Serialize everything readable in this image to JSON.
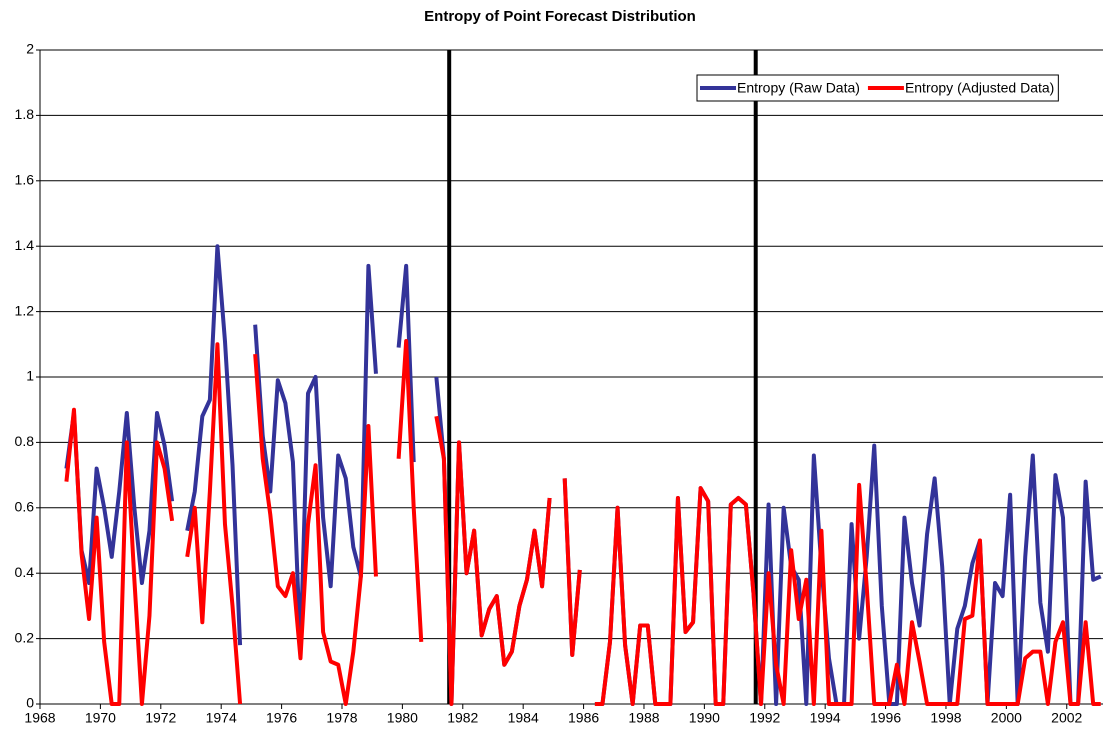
{
  "chart_data": {
    "type": "line",
    "title": "Entropy of Point Forecast Distribution",
    "x": [
      1968.875,
      1969.125,
      1969.375,
      1969.625,
      1969.875,
      1970.125,
      1970.375,
      1970.625,
      1970.875,
      1971.125,
      1971.375,
      1971.625,
      1971.875,
      1972.125,
      1972.375,
      1972.625,
      1972.875,
      1973.125,
      1973.375,
      1973.625,
      1973.875,
      1974.125,
      1974.375,
      1974.625,
      1974.875,
      1975.125,
      1975.375,
      1975.625,
      1975.875,
      1976.125,
      1976.375,
      1976.625,
      1976.875,
      1977.125,
      1977.375,
      1977.625,
      1977.875,
      1978.125,
      1978.375,
      1978.625,
      1978.875,
      1979.125,
      1979.375,
      1979.625,
      1979.875,
      1980.125,
      1980.375,
      1980.625,
      1980.875,
      1981.125,
      1981.375,
      1981.625,
      1981.875,
      1982.125,
      1982.375,
      1982.625,
      1982.875,
      1983.125,
      1983.375,
      1983.625,
      1983.875,
      1984.125,
      1984.375,
      1984.625,
      1984.875,
      1985.125,
      1985.375,
      1985.625,
      1985.875,
      1986.125,
      1986.375,
      1986.625,
      1986.875,
      1987.125,
      1987.375,
      1987.625,
      1987.875,
      1988.125,
      1988.375,
      1988.625,
      1988.875,
      1989.125,
      1989.375,
      1989.625,
      1989.875,
      1990.125,
      1990.375,
      1990.625,
      1990.875,
      1991.125,
      1991.375,
      1991.625,
      1991.875,
      1992.125,
      1992.375,
      1992.625,
      1992.875,
      1993.125,
      1993.375,
      1993.625,
      1993.875,
      1994.125,
      1994.375,
      1994.625,
      1994.875,
      1995.125,
      1995.375,
      1995.625,
      1995.875,
      1996.125,
      1996.375,
      1996.625,
      1996.875,
      1997.125,
      1997.375,
      1997.625,
      1997.875,
      1998.125,
      1998.375,
      1998.625,
      1998.875,
      1999.125,
      1999.375,
      1999.625,
      1999.875,
      2000.125,
      2000.375,
      2000.625,
      2000.875,
      2001.125,
      2001.375,
      2001.625,
      2001.875,
      2002.125,
      2002.375,
      2002.625,
      2002.875,
      2003.125
    ],
    "series": [
      {
        "name": "Entropy (Raw Data)",
        "color": "#333399",
        "values": [
          0.72,
          0.89,
          0.47,
          0.37,
          0.72,
          0.6,
          0.45,
          0.65,
          0.89,
          0.6,
          0.37,
          0.53,
          0.89,
          0.79,
          0.62,
          null,
          0.53,
          0.65,
          0.88,
          0.93,
          1.4,
          1.11,
          0.73,
          0.18,
          null,
          1.16,
          0.82,
          0.65,
          0.99,
          0.92,
          0.74,
          0.16,
          0.95,
          1,
          0.57,
          0.36,
          0.76,
          0.69,
          0.48,
          0.39,
          1.34,
          1.01,
          null,
          null,
          1.09,
          1.34,
          0.74,
          null,
          null,
          1,
          0.75,
          0,
          0.8,
          0.4,
          0.53,
          0.21,
          0.29,
          0.33,
          0.12,
          0.16,
          0.3,
          0.38,
          0.53,
          0.36,
          0.63,
          null,
          0.69,
          0.15,
          0.41,
          null,
          0,
          0,
          0.19,
          0.6,
          0.18,
          0,
          0.24,
          0.24,
          0,
          0,
          0,
          0.63,
          0.22,
          0.25,
          0.66,
          0.62,
          0,
          0,
          0.61,
          0.63,
          0.61,
          0.34,
          0,
          0.61,
          0,
          0.6,
          0.42,
          0.38,
          0,
          0.76,
          0.42,
          0.14,
          0,
          0,
          0.55,
          0.2,
          0.45,
          0.79,
          0.3,
          0,
          0,
          0.57,
          0.37,
          0.24,
          0.52,
          0.69,
          0.42,
          0,
          0.23,
          0.3,
          0.43,
          0.5,
          0,
          0.37,
          0.33,
          0.64,
          0,
          0.45,
          0.76,
          0.31,
          0.16,
          0.7,
          0.57,
          0,
          0,
          0.68,
          0.38,
          0.39
        ]
      },
      {
        "name": "Entropy (Adjusted Data)",
        "color": "#ff0000",
        "values": [
          0.68,
          0.9,
          0.46,
          0.26,
          0.57,
          0.19,
          0,
          0,
          0.8,
          0.38,
          0,
          0.27,
          0.8,
          0.72,
          0.56,
          null,
          0.45,
          0.6,
          0.25,
          0.65,
          1.1,
          0.55,
          0.3,
          0,
          null,
          1.07,
          0.75,
          0.58,
          0.36,
          0.33,
          0.4,
          0.14,
          0.55,
          0.73,
          0.22,
          0.13,
          0.12,
          0,
          0.16,
          0.39,
          0.85,
          0.39,
          null,
          null,
          0.75,
          1.11,
          0.6,
          0.19,
          null,
          0.88,
          0.75,
          0,
          0.8,
          0.4,
          0.53,
          0.21,
          0.29,
          0.33,
          0.12,
          0.16,
          0.3,
          0.38,
          0.53,
          0.36,
          0.63,
          null,
          0.69,
          0.15,
          0.41,
          null,
          0,
          0,
          0.19,
          0.6,
          0.18,
          0,
          0.24,
          0.24,
          0,
          0,
          0,
          0.63,
          0.22,
          0.25,
          0.66,
          0.62,
          0,
          0,
          0.61,
          0.63,
          0.61,
          0.34,
          0,
          0.4,
          0.12,
          0,
          0.47,
          0.26,
          0.38,
          0,
          0.53,
          0,
          0,
          0,
          0,
          0.67,
          0.36,
          0,
          0,
          0,
          0.12,
          0,
          0.25,
          0.13,
          0,
          0,
          0,
          0,
          0,
          0.26,
          0.27,
          0.5,
          0,
          0,
          0,
          0,
          0,
          0.14,
          0.16,
          0.16,
          0,
          0.19,
          0.25,
          0,
          0,
          0.25,
          0,
          0
        ]
      }
    ],
    "xlim": [
      1968,
      2003.2
    ],
    "xticks": [
      1968,
      1970,
      1972,
      1974,
      1976,
      1978,
      1980,
      1982,
      1984,
      1986,
      1988,
      1990,
      1992,
      1994,
      1996,
      1998,
      2000,
      2002
    ],
    "ylim": [
      0,
      2
    ],
    "yticks": [
      0,
      0.2,
      0.4,
      0.6,
      0.8,
      1,
      1.2,
      1.4,
      1.6,
      1.8,
      2
    ],
    "grid": true,
    "vlines": [
      1981.55,
      1991.7
    ],
    "legend": "top-right"
  }
}
